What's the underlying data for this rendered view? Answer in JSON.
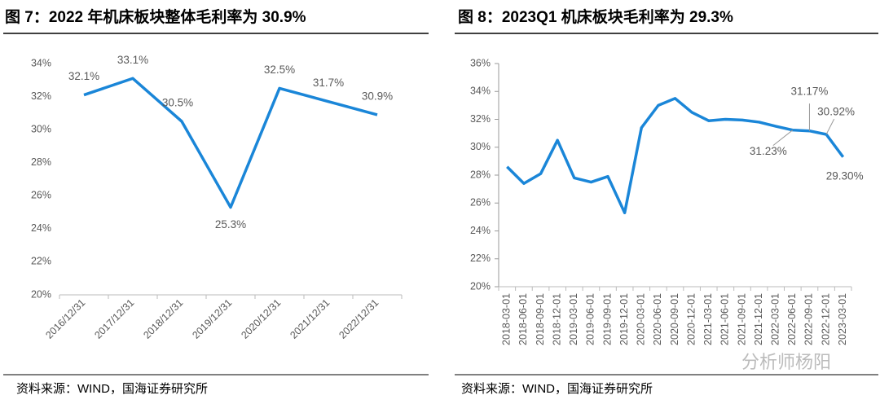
{
  "chart_data": [
    {
      "type": "line",
      "title": "图 7：2022 年机床板块整体毛利率为 30.9%",
      "categories": [
        "2016/12/31",
        "2017/12/31",
        "2018/12/31",
        "2019/12/31",
        "2020/12/31",
        "2021/12/31",
        "2022/12/31"
      ],
      "values": [
        32.1,
        33.1,
        30.5,
        25.3,
        32.5,
        31.7,
        30.9
      ],
      "value_labels": [
        "32.1%",
        "33.1%",
        "30.5%",
        "25.3%",
        "32.5%",
        "31.7%",
        "30.9%"
      ],
      "color": "#1a86d8",
      "ylim": [
        20,
        34
      ],
      "yticks": [
        {
          "value": 20,
          "label": "20%"
        },
        {
          "value": 22,
          "label": "22%"
        },
        {
          "value": 24,
          "label": "24%"
        },
        {
          "value": 26,
          "label": "26%"
        },
        {
          "value": 28,
          "label": "28%"
        },
        {
          "value": 30,
          "label": "30%"
        },
        {
          "value": 32,
          "label": "32%"
        },
        {
          "value": 34,
          "label": "34%"
        }
      ],
      "source": "资料来源：WIND，国海证券研究所"
    },
    {
      "type": "line",
      "title": "图 8：2023Q1 机床板块毛利率为 29.3%",
      "categories": [
        "2018-03-01",
        "2018-06-01",
        "2018-09-01",
        "2018-12-01",
        "2019-03-01",
        "2019-06-01",
        "2019-09-01",
        "2019-12-01",
        "2020-03-01",
        "2020-06-01",
        "2020-09-01",
        "2020-12-01",
        "2021-03-01",
        "2021-06-01",
        "2021-09-01",
        "2021-12-01",
        "2022-03-01",
        "2022-06-01",
        "2022-09-01",
        "2022-12-01",
        "2023-03-01"
      ],
      "values": [
        28.6,
        27.4,
        28.1,
        30.5,
        27.8,
        27.5,
        27.9,
        25.3,
        31.4,
        33.0,
        33.5,
        32.5,
        31.9,
        32.0,
        31.95,
        31.8,
        31.5,
        31.23,
        31.17,
        30.92,
        29.3
      ],
      "value_labels": [
        null,
        null,
        null,
        null,
        null,
        null,
        null,
        null,
        null,
        null,
        null,
        null,
        null,
        null,
        null,
        null,
        null,
        "31.23%",
        "31.17%",
        "30.92%",
        "29.30%"
      ],
      "color": "#1a86d8",
      "ylim": [
        20,
        36
      ],
      "yticks": [
        {
          "value": 20,
          "label": "20%"
        },
        {
          "value": 22,
          "label": "22%"
        },
        {
          "value": 24,
          "label": "24%"
        },
        {
          "value": 26,
          "label": "26%"
        },
        {
          "value": 28,
          "label": "28%"
        },
        {
          "value": 30,
          "label": "30%"
        },
        {
          "value": 32,
          "label": "32%"
        },
        {
          "value": 34,
          "label": "34%"
        },
        {
          "value": 36,
          "label": "36%"
        }
      ],
      "source": "资料来源：WIND，国海证券研究所",
      "watermark": "分析师杨阳"
    }
  ]
}
